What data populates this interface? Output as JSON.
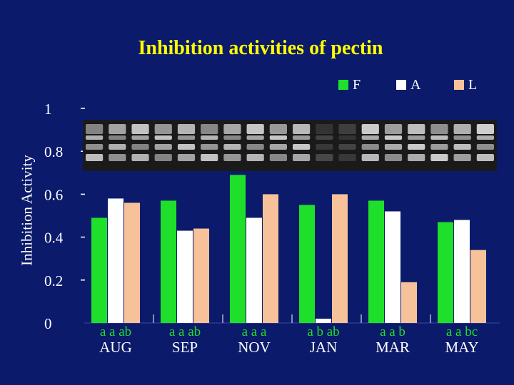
{
  "title": "Inhibition activities of pectin",
  "colors": {
    "background": "#0b1a6b",
    "F": "#1ee02a",
    "A": "#ffffff",
    "L": "#f7c29a",
    "title": "#ffff00",
    "letters": "#1ee02a",
    "text": "#ffffff"
  },
  "chart_data": {
    "type": "bar",
    "ylabel": "Inhibition Activity",
    "ylim": [
      0,
      1
    ],
    "yticks": [
      "0",
      "0.2",
      "0.4",
      "0.6",
      "0.8",
      "1"
    ],
    "categories": [
      "AUG",
      "SEP",
      "NOV",
      "JAN",
      "MAR",
      "MAY"
    ],
    "series": [
      {
        "name": "F",
        "values": [
          0.49,
          0.57,
          0.69,
          0.55,
          0.57,
          0.47
        ]
      },
      {
        "name": "A",
        "values": [
          0.58,
          0.43,
          0.49,
          0.02,
          0.52,
          0.48
        ]
      },
      {
        "name": "L",
        "values": [
          0.56,
          0.44,
          0.6,
          0.6,
          0.19,
          0.34
        ]
      }
    ],
    "significance": [
      "a  a  ab",
      "a  a  ab",
      "a  a  a",
      "a  b  ab",
      "a  a  b",
      "a  a  bc"
    ],
    "legend_position": "top-right",
    "grid": false
  }
}
